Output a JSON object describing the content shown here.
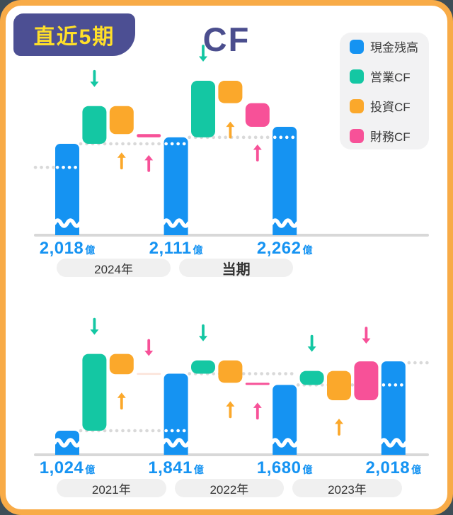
{
  "page": {
    "background": "#3f4e57",
    "card_border": "#f8ab47",
    "card_bg": "#ffffff"
  },
  "badge": {
    "label": "直近5期",
    "bg": "#4c4f93",
    "text_color": "#ffdf29"
  },
  "title": {
    "text": "CF",
    "color": "#4b4e8e"
  },
  "legend": {
    "bg": "#f2f2f3",
    "items": [
      {
        "name": "cash-balance",
        "label": "現金残高",
        "color": "#1593f2"
      },
      {
        "name": "operating-cf",
        "label": "営業CF",
        "color": "#14c7a3"
      },
      {
        "name": "investing-cf",
        "label": "投資CF",
        "color": "#fba82b"
      },
      {
        "name": "financing-cf",
        "label": "財務CF",
        "color": "#f75198"
      }
    ]
  },
  "colors": {
    "cash": "#1593f2",
    "operating": "#14c7a3",
    "investing": "#fba82b",
    "financing": "#f75198",
    "financing_faint": "#fce3d8",
    "dots": "#d9d9d9",
    "axis": "#d8d8d8",
    "pill_bg": "#f0f0f0",
    "pill_text": "#333333",
    "value_text": "#1593f2"
  },
  "chart_data": [
    {
      "id": "recent",
      "type": "waterfall",
      "unit": "億円",
      "balances": [
        {
          "text": "2,018",
          "unit": "億",
          "value": 2018
        },
        {
          "text": "2,111",
          "unit": "億",
          "value": 2111
        },
        {
          "text": "2,262",
          "unit": "億",
          "value": 2262
        }
      ],
      "transitions": [
        {
          "label": "2024年",
          "operating": 540,
          "investing": -400,
          "financing": -47
        },
        {
          "label": "当期",
          "operating": 810,
          "investing": -320,
          "financing": -339,
          "emphasis": true
        }
      ],
      "lead_in_level": 1680
    },
    {
      "id": "history",
      "type": "waterfall",
      "unit": "億円",
      "balances": [
        {
          "text": "1,024",
          "unit": "億",
          "value": 1024
        },
        {
          "text": "1,841",
          "unit": "億",
          "value": 1841
        },
        {
          "text": "1,680",
          "unit": "億",
          "value": 1680
        },
        {
          "text": "2,018",
          "unit": "億",
          "value": 2018
        }
      ],
      "transitions": [
        {
          "label": "2021年",
          "operating": 1100,
          "investing": -290,
          "financing": 7
        },
        {
          "label": "2022年",
          "operating": 190,
          "investing": -320,
          "financing": -31
        },
        {
          "label": "2023年",
          "operating": 200,
          "investing": -420,
          "financing": 558
        }
      ],
      "lead_out": true
    }
  ]
}
